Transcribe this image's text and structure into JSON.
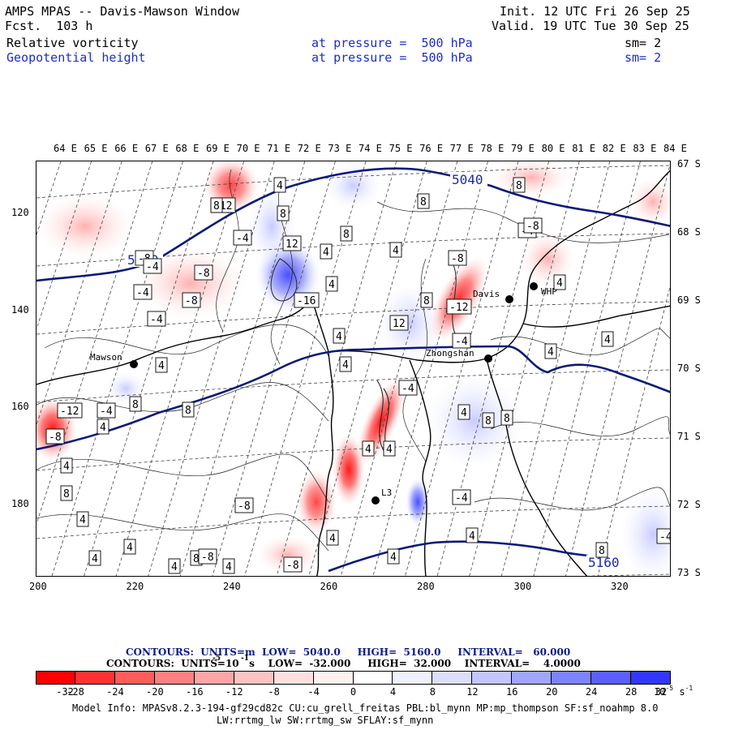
{
  "header": {
    "title_left": "AMPS MPAS -- Davis-Mawson Window",
    "fcst": "Fcst.  103 h",
    "init": "Init. 12 UTC Fri 26 Sep 25",
    "valid": "Valid. 19 UTC Tue 30 Sep 25",
    "field1": {
      "name": "Relative vorticity",
      "pressure": "at pressure =  500 hPa",
      "sm": "sm= 2"
    },
    "field2": {
      "name": "Geopotential height",
      "pressure": "at pressure =  500 hPa",
      "sm": "sm= 2"
    }
  },
  "map": {
    "top_longitudes": [
      "64 E",
      "65 E",
      "66 E",
      "67 E",
      "68 E",
      "69 E",
      "70 E",
      "71 E",
      "72 E",
      "73 E",
      "74 E",
      "75 E",
      "76 E",
      "77 E",
      "78 E",
      "79 E",
      "80 E",
      "81 E",
      "82 E",
      "83 E",
      "84 E"
    ],
    "right_latitudes": [
      "67 S",
      "68 S",
      "69 S",
      "70 S",
      "71 S",
      "72 S",
      "73 S"
    ],
    "x_ticks": [
      "200",
      "220",
      "240",
      "260",
      "280",
      "300",
      "320"
    ],
    "y_ticks": [
      "120",
      "140",
      "160",
      "180"
    ],
    "stations": [
      "Mawson",
      "Davis",
      "WHP",
      "Zhongshan",
      "L3"
    ],
    "height_labels": [
      "5040",
      "5040",
      "5160"
    ],
    "vorticity_labels": [
      "-12",
      "-4",
      "-8",
      "-4",
      "-4",
      "-8",
      "-8",
      "-4",
      "-16",
      "12",
      "4",
      "8",
      "8",
      "4",
      "12",
      "8",
      "4",
      "8",
      "4",
      "-4",
      "4",
      "-4",
      "-8",
      "8",
      "-12",
      "-4",
      "4",
      "4",
      "4",
      "8",
      "-8",
      "-12",
      "-4",
      "8",
      "4",
      "-8",
      "8",
      "4",
      "4",
      "8",
      "4",
      "4",
      "4",
      "4",
      "8",
      "4",
      "-8",
      "4",
      "4",
      "4",
      "8",
      "-4",
      "4",
      "-8",
      "4",
      "4",
      "-8",
      "8",
      "-4",
      "4",
      "8"
    ]
  },
  "contours_line1": {
    "label": "CONTOURS:  UNITS=m  LOW=  5040.0     HIGH=  5160.0     INTERVAL=   60.000"
  },
  "contours_line2": {
    "label": "CONTOURS:  UNITS=10   s    LOW=  -32.000     HIGH=  32.000    INTERVAL=    4.0000",
    "exp": "-5",
    "exp2": "-1"
  },
  "colorbar": {
    "labels": [
      "-32",
      "-28",
      "-24",
      "-20",
      "-16",
      "-12",
      "-8",
      "-4",
      "0",
      "4",
      "8",
      "12",
      "16",
      "20",
      "24",
      "28",
      "32"
    ],
    "unit": "10",
    "unit_exp": "-5",
    "unit_s": "s",
    "unit_s_exp": "-1",
    "colors": [
      "#ff0000",
      "#ff3232",
      "#ff5c5c",
      "#ff8080",
      "#ffa5a5",
      "#ffc2c2",
      "#ffdede",
      "#fff0f0",
      "#ffffff",
      "#ffffff",
      "#eef0ff",
      "#dcdeff",
      "#c2c5ff",
      "#a0a5ff",
      "#7d83ff",
      "#5a60ff",
      "#3338ff",
      "#0000ff"
    ]
  },
  "footer": {
    "model_info": "Model Info: MPASv8.2.3-194-gf29cd82c CU:cu_grell_freitas PBL:bl_mynn MP:mp_thompson SF:sf_noahmp 8.0",
    "model_info2": "LW:rrtmg_lw SW:rrtmg_sw SFLAY:sf_mynn"
  }
}
